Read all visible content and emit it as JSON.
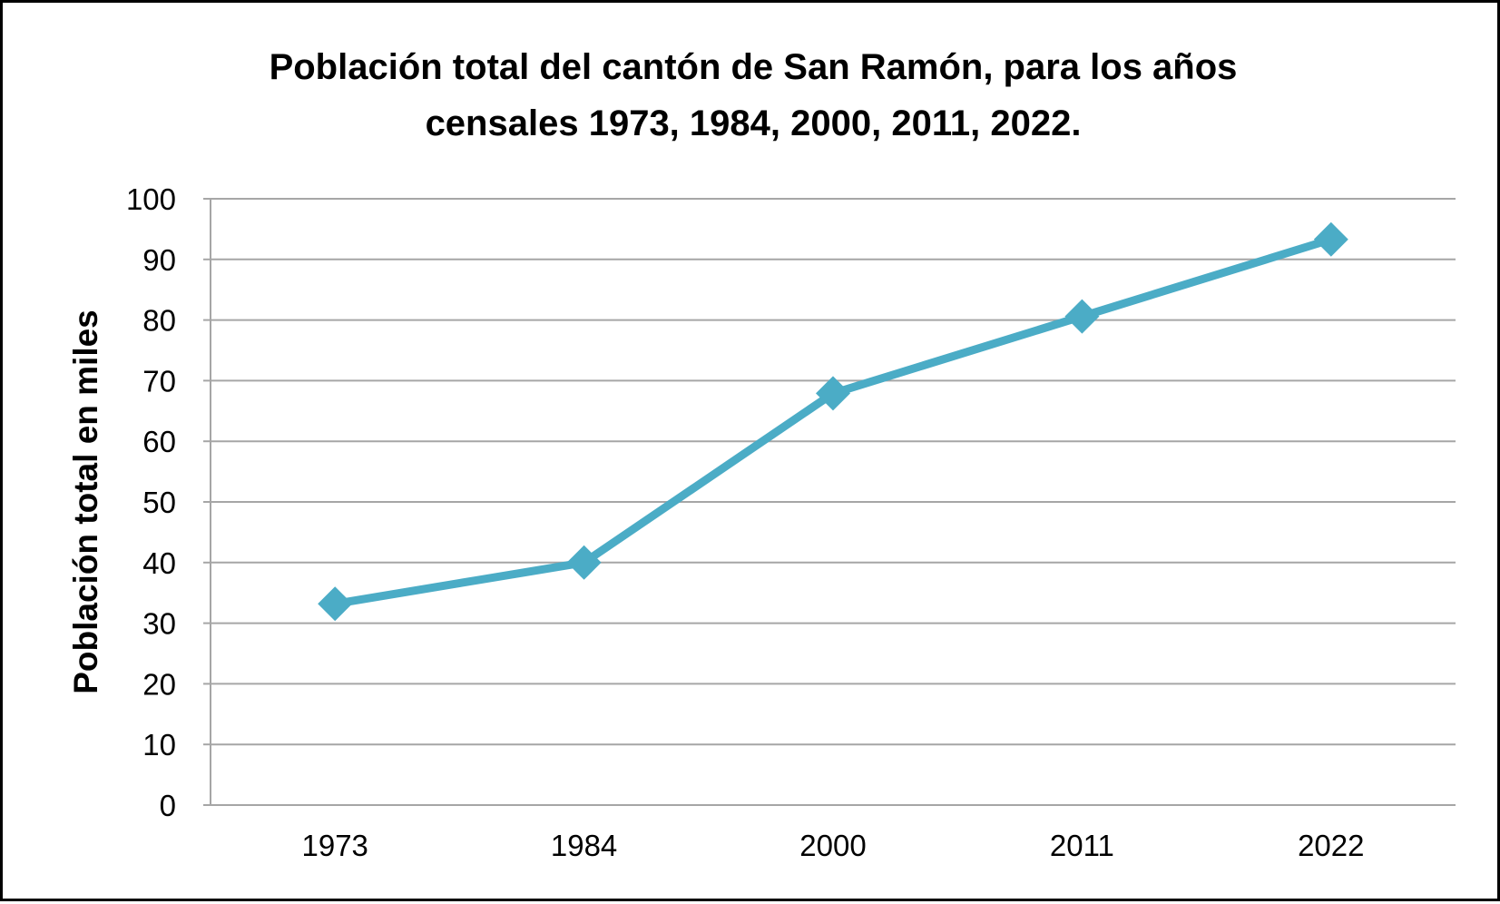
{
  "chart_data": {
    "type": "line",
    "title_lines": [
      "Población total del cantón de San Ramón, para los años",
      "censales 1973, 1984, 2000, 2011, 2022."
    ],
    "xlabel": "",
    "ylabel": "Población total en miles",
    "categories": [
      "1973",
      "1984",
      "2000",
      "2011",
      "2022"
    ],
    "series": [
      {
        "values": [
          33.2,
          40.0,
          67.9,
          80.6,
          93.3
        ],
        "color": "#4BACC6",
        "marker": "diamond"
      }
    ],
    "ylim": [
      0,
      100
    ],
    "yticks": [
      "0",
      "10",
      "20",
      "30",
      "40",
      "50",
      "60",
      "70",
      "80",
      "90",
      "100"
    ],
    "grid": true,
    "legend": "none",
    "colors": {
      "gridline": "#A6A6A6",
      "axis": "#A6A6A6",
      "frame": "#000000"
    }
  }
}
